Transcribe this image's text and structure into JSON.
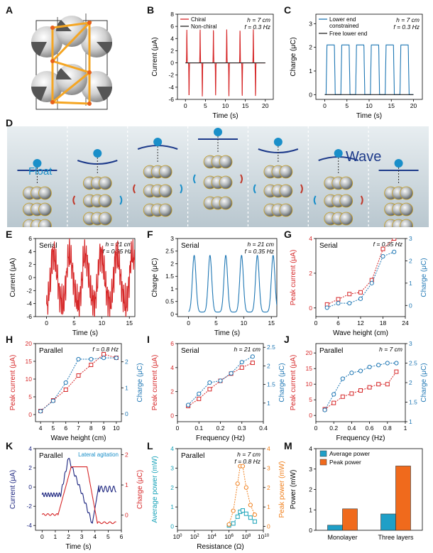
{
  "labels": {
    "A": "A",
    "B": "B",
    "C": "C",
    "D": "D",
    "E": "E",
    "F": "F",
    "G": "G",
    "H": "H",
    "I": "I",
    "J": "J",
    "K": "K",
    "L": "L",
    "M": "M"
  },
  "panelD": {
    "float": "Float",
    "wave": "Wave"
  },
  "chart_data": [
    {
      "id": "B",
      "type": "line",
      "xlabel": "Time (s)",
      "ylabel": "Current (μA)",
      "xlim": [
        -2,
        22
      ],
      "ylim": [
        -6,
        8
      ],
      "xticks": [
        0,
        5,
        10,
        15,
        20
      ],
      "yticks": [
        -6,
        -4,
        -2,
        0,
        2,
        4,
        6,
        8
      ],
      "annotations": [
        "h = 7 cm",
        "f = 0.3 Hz"
      ],
      "series": [
        {
          "name": "Chiral",
          "color": "#d62728",
          "kind": "pulse",
          "period": 3.33,
          "amp": 5.5,
          "neg": -5.5,
          "x0": 0
        },
        {
          "name": "Non-chiral",
          "color": "#222222",
          "kind": "flat",
          "value": 0
        }
      ]
    },
    {
      "id": "C",
      "type": "line",
      "xlabel": "Time (s)",
      "ylabel": "Charge (μC)",
      "xlim": [
        -2,
        22
      ],
      "ylim": [
        -0.2,
        3.4
      ],
      "xticks": [
        0,
        5,
        10,
        15,
        20
      ],
      "yticks": [
        0,
        1,
        2,
        3
      ],
      "annotations": [
        "h = 7 cm",
        "f = 0.3 Hz"
      ],
      "series": [
        {
          "name": "Lower end constrained",
          "color": "#1f77b4",
          "kind": "square",
          "period": 3.33,
          "high": 2.1
        },
        {
          "name": "Free lower end",
          "color": "#222222",
          "kind": "flat",
          "value": 0
        }
      ]
    },
    {
      "id": "E",
      "type": "line",
      "xlabel": "Time (s)",
      "ylabel": "Current (μA)",
      "xlim": [
        -2,
        16
      ],
      "ylim": [
        -6,
        6
      ],
      "xticks": [
        0,
        5,
        10,
        15
      ],
      "yticks": [
        -6,
        -4,
        -2,
        0,
        2,
        4,
        6
      ],
      "title": "Serial",
      "annotations": [
        "h = 21 cm",
        "f = 0.35 Hz"
      ],
      "series": [
        {
          "name": "",
          "color": "#d62728",
          "kind": "noisy",
          "period": 2.86,
          "amp": 4.5
        }
      ]
    },
    {
      "id": "F",
      "type": "line",
      "xlabel": "Time (s)",
      "ylabel": "Charge (μC)",
      "xlim": [
        -2,
        16
      ],
      "ylim": [
        -0.1,
        3.0
      ],
      "xticks": [
        0,
        5,
        10,
        15
      ],
      "yticks": [
        0,
        0.5,
        1.0,
        1.5,
        2.0,
        2.5,
        3.0
      ],
      "title": "Serial",
      "annotations": [
        "h = 21 cm",
        "f = 0.35 Hz"
      ],
      "series": [
        {
          "name": "",
          "color": "#1f77b4",
          "kind": "hump",
          "period": 2.86,
          "high": 2.25
        }
      ]
    },
    {
      "id": "G",
      "type": "scatter",
      "xlabel": "Wave height (cm)",
      "ylabel": "Peak current (μA)",
      "y2label": "Charge (μC)",
      "xlim": [
        0,
        24
      ],
      "ylim": [
        -0.5,
        4
      ],
      "y2lim": [
        -0.5,
        3
      ],
      "xticks": [
        0,
        6,
        12,
        18,
        24
      ],
      "yticks": [
        0,
        2,
        4
      ],
      "y2ticks": [
        0,
        1,
        2,
        3
      ],
      "title": "Serial",
      "annotations": [
        "f = 0.35 Hz"
      ],
      "series": [
        {
          "name": "Peak current",
          "axis": "left",
          "color": "#d62728",
          "marker": "square",
          "x": [
            3,
            6,
            9,
            12,
            15,
            18,
            21
          ],
          "y": [
            0.2,
            0.5,
            0.8,
            0.9,
            1.6,
            3.4,
            4.0
          ]
        },
        {
          "name": "Charge",
          "axis": "right",
          "color": "#1f77b4",
          "marker": "circle",
          "x": [
            3,
            6,
            9,
            12,
            15,
            18,
            21
          ],
          "y": [
            -0.1,
            0.1,
            0.1,
            0.3,
            1.0,
            2.2,
            2.4
          ]
        }
      ]
    },
    {
      "id": "H",
      "type": "scatter",
      "xlabel": "Wave height (cm)",
      "ylabel": "Peak current (μA)",
      "y2label": "Charge (μC)",
      "xlim": [
        3.6,
        10.4
      ],
      "ylim": [
        -2,
        20
      ],
      "y2lim": [
        -0.3,
        2.7
      ],
      "xticks": [
        4,
        5,
        6,
        7,
        8,
        9,
        10
      ],
      "yticks": [
        0,
        5,
        10,
        15,
        20
      ],
      "y2ticks": [
        0,
        1,
        2
      ],
      "title": "Parallel",
      "annotations": [
        "f = 0.8 Hz"
      ],
      "series": [
        {
          "name": "Peak current",
          "axis": "left",
          "color": "#d62728",
          "marker": "square",
          "x": [
            4,
            5,
            6,
            7,
            8,
            9,
            10
          ],
          "y": [
            1,
            4,
            7,
            11,
            14,
            17,
            16
          ]
        },
        {
          "name": "Charge",
          "axis": "right",
          "color": "#1f77b4",
          "marker": "circle",
          "x": [
            4,
            5,
            6,
            7,
            8,
            9,
            10
          ],
          "y": [
            0.1,
            0.5,
            1.2,
            2.1,
            2.1,
            2.15,
            2.15
          ]
        }
      ]
    },
    {
      "id": "I",
      "type": "scatter",
      "xlabel": "Frequency (Hz)",
      "ylabel": "Peak current (μA)",
      "y2label": "Charge (μC)",
      "xlim": [
        0,
        0.4
      ],
      "ylim": [
        -0.5,
        6
      ],
      "y2lim": [
        0.5,
        2.6
      ],
      "xticks": [
        0,
        0.1,
        0.2,
        0.3,
        0.4
      ],
      "yticks": [
        0,
        2,
        4,
        6
      ],
      "y2ticks": [
        1.0,
        1.5,
        2.0,
        2.5
      ],
      "title": "Serial",
      "annotations": [
        "h = 21 cm"
      ],
      "series": [
        {
          "name": "Peak current",
          "axis": "left",
          "color": "#d62728",
          "marker": "square",
          "x": [
            0.05,
            0.1,
            0.15,
            0.2,
            0.25,
            0.3,
            0.35
          ],
          "y": [
            0.8,
            1.4,
            2.2,
            2.9,
            3.5,
            4.0,
            4.4
          ]
        },
        {
          "name": "Charge",
          "axis": "right",
          "color": "#1f77b4",
          "marker": "circle",
          "x": [
            0.05,
            0.1,
            0.15,
            0.2,
            0.25,
            0.3,
            0.35
          ],
          "y": [
            0.95,
            1.25,
            1.55,
            1.6,
            1.8,
            2.1,
            2.25
          ]
        }
      ]
    },
    {
      "id": "J",
      "type": "scatter",
      "xlabel": "Frequency (Hz)",
      "ylabel": "Peak current (μA)",
      "y2label": "Charge (μC)",
      "xlim": [
        0,
        1.0
      ],
      "ylim": [
        -2,
        23
      ],
      "y2lim": [
        1.0,
        3.0
      ],
      "xticks": [
        0,
        0.2,
        0.4,
        0.6,
        0.8,
        1.0
      ],
      "yticks": [
        0,
        5,
        10,
        15,
        20
      ],
      "y2ticks": [
        1.0,
        1.5,
        2.0,
        2.5,
        3.0
      ],
      "title": "Parallel",
      "annotations": [
        "h = 7 cm"
      ],
      "series": [
        {
          "name": "Peak current",
          "axis": "left",
          "color": "#d62728",
          "marker": "square",
          "x": [
            0.1,
            0.2,
            0.3,
            0.4,
            0.5,
            0.6,
            0.7,
            0.8,
            0.9
          ],
          "y": [
            2,
            4,
            6,
            7,
            8,
            9,
            10,
            10,
            14
          ]
        },
        {
          "name": "Charge",
          "axis": "right",
          "color": "#1f77b4",
          "marker": "circle",
          "x": [
            0.1,
            0.2,
            0.3,
            0.4,
            0.5,
            0.6,
            0.7,
            0.8,
            0.9
          ],
          "y": [
            1.3,
            1.7,
            2.1,
            2.25,
            2.3,
            2.4,
            2.45,
            2.5,
            2.5
          ]
        }
      ]
    },
    {
      "id": "K",
      "type": "line",
      "xlabel": "Time (s)",
      "ylabel": "Current (μA)",
      "y2label": "Charge (μC)",
      "xlim": [
        -0.5,
        6
      ],
      "ylim": [
        -4.5,
        4
      ],
      "y2lim": [
        -0.5,
        2.2
      ],
      "xticks": [
        0,
        1,
        2,
        3,
        4,
        5,
        6
      ],
      "yticks": [
        -4,
        -2,
        0,
        2,
        4
      ],
      "y2ticks": [
        0,
        1,
        2
      ],
      "title": "Parallel",
      "annotations": [
        "Lateral agitation"
      ],
      "series": [
        {
          "name": "Current",
          "axis": "left",
          "color": "#1a237e",
          "kind": "kcurrent"
        },
        {
          "name": "Charge",
          "axis": "right",
          "color": "#d62728",
          "kind": "kcharge"
        }
      ]
    },
    {
      "id": "L",
      "type": "scatter",
      "xlabel": "Resistance (Ω)",
      "ylabel": "Average power (mW)",
      "y2label": "Peak power (mW)",
      "xscale": "log",
      "xlim": [
        0,
        10
      ],
      "ylim": [
        -0.2,
        4
      ],
      "y2lim": [
        -0.2,
        4
      ],
      "xticks": [
        0,
        2,
        4,
        6,
        8,
        10
      ],
      "yticks": [
        0,
        1,
        2,
        3,
        4
      ],
      "y2ticks": [
        0,
        1,
        2,
        3,
        4
      ],
      "title": "Parallel",
      "annotations": [
        "h = 7 cm",
        "f = 0.8 Hz"
      ],
      "series": [
        {
          "name": "Average power",
          "axis": "left",
          "color": "#17a2b8",
          "marker": "square",
          "x": [
            6,
            6.5,
            7,
            7.3,
            7.6,
            8,
            8.5,
            9
          ],
          "y": [
            0.05,
            0.15,
            0.5,
            0.75,
            0.82,
            0.65,
            0.45,
            0.25
          ]
        },
        {
          "name": "Peak power",
          "axis": "right",
          "color": "#f07f1c",
          "marker": "circle",
          "x": [
            6,
            6.5,
            7,
            7.3,
            7.6,
            8,
            8.5,
            9
          ],
          "y": [
            0.1,
            0.8,
            2.2,
            3.1,
            3.1,
            2.0,
            1.1,
            0.6
          ]
        }
      ]
    },
    {
      "id": "M",
      "type": "bar",
      "xlabel": "",
      "ylabel": "Power (mW)",
      "categories": [
        "Monolayer",
        "Three layers"
      ],
      "ylim": [
        0,
        4
      ],
      "yticks": [
        0,
        1,
        2,
        3,
        4
      ],
      "series": [
        {
          "name": "Average power",
          "color": "#1f9fc7",
          "values": [
            0.25,
            0.8
          ]
        },
        {
          "name": "Peak power",
          "color": "#f06a1c",
          "values": [
            1.05,
            3.15
          ]
        }
      ]
    }
  ]
}
